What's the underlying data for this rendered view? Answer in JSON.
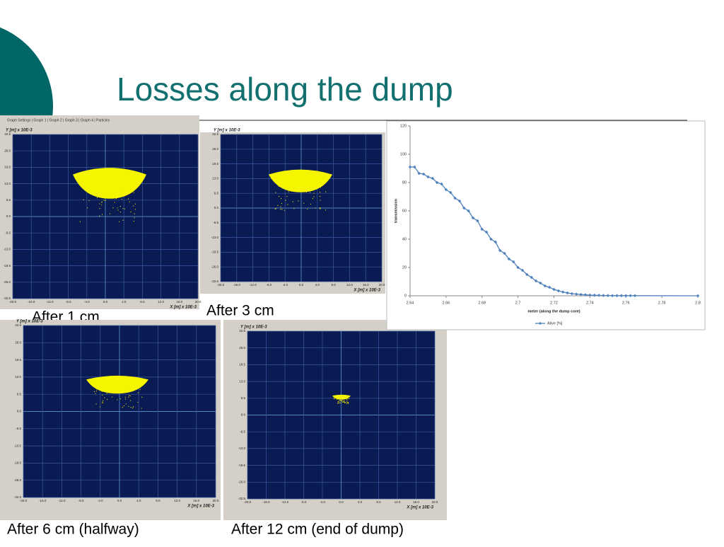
{
  "title": "Losses along the dump",
  "panel_toolbar": "Graph Settings | Graph 1 | Graph 2 | Graph 3 | Graph 4 | Particles",
  "captions": [
    "After 1 cm",
    "After 3 cm",
    "After 6 cm (halfway)",
    "After 12 cm (end of dump)"
  ],
  "panel_axes": {
    "y_label": "Y [m] x 10E-3",
    "x_label": "X [m] x 10E-3",
    "ylim": [
      -32.5,
      32.5
    ],
    "xlim": [
      -20,
      20
    ],
    "yticks": [
      {
        "value": 32.5,
        "label": "32.5"
      },
      {
        "value": 26,
        "label": "26.0"
      },
      {
        "value": 19.5,
        "label": "19.5"
      },
      {
        "value": 13,
        "label": "13.0"
      },
      {
        "value": 6.5,
        "label": "6.5"
      },
      {
        "value": 0,
        "label": "0.0"
      },
      {
        "value": -6.5,
        "label": "-6.5"
      },
      {
        "value": -13,
        "label": "-13.0"
      },
      {
        "value": -19.5,
        "label": "-19.5"
      },
      {
        "value": -26,
        "label": "-26.0"
      },
      {
        "value": -32.5,
        "label": "-32.5"
      }
    ],
    "xticks": [
      {
        "value": -20,
        "label": "-20.0"
      },
      {
        "value": -16,
        "label": "-16.0"
      },
      {
        "value": -12,
        "label": "-12.0"
      },
      {
        "value": -8,
        "label": "-8.0"
      },
      {
        "value": -4,
        "label": "-4.0"
      },
      {
        "value": 0,
        "label": "0.0"
      },
      {
        "value": 4,
        "label": "4.0"
      },
      {
        "value": 8,
        "label": "8.0"
      },
      {
        "value": 12,
        "label": "12.0"
      },
      {
        "value": 16,
        "label": "16.0"
      },
      {
        "value": 20,
        "label": "20.0"
      }
    ]
  },
  "chart_data": {
    "type": "line",
    "x_label": "meter (along the dump core)",
    "y_label": "transmission",
    "xlim": [
      2.64,
      2.8
    ],
    "ylim": [
      0,
      120
    ],
    "xticks": [
      2.64,
      2.66,
      2.68,
      2.7,
      2.72,
      2.74,
      2.76,
      2.78,
      2.8
    ],
    "yticks": [
      0,
      20,
      40,
      60,
      80,
      100,
      120
    ],
    "legend": "bottom",
    "series": [
      {
        "name": "Alive [%]",
        "color": "#4f81bd",
        "x": [
          2.64,
          2.6425,
          2.645,
          2.6475,
          2.65,
          2.6525,
          2.655,
          2.6575,
          2.66,
          2.6625,
          2.665,
          2.6675,
          2.67,
          2.6725,
          2.675,
          2.6775,
          2.68,
          2.6825,
          2.685,
          2.6875,
          2.69,
          2.6925,
          2.695,
          2.6975,
          2.7,
          2.7025,
          2.705,
          2.7075,
          2.71,
          2.7125,
          2.715,
          2.7175,
          2.72,
          2.7225,
          2.725,
          2.7275,
          2.73,
          2.7325,
          2.735,
          2.7375,
          2.74,
          2.7425,
          2.745,
          2.7475,
          2.75,
          2.7525,
          2.755,
          2.7575,
          2.76,
          2.7625,
          2.765,
          2.8
        ],
        "values": [
          91,
          91,
          86.5,
          86,
          84,
          83,
          80,
          79,
          75,
          73,
          69,
          67,
          62,
          60,
          55,
          53,
          47,
          45,
          40,
          38,
          32,
          30,
          26,
          24,
          20,
          18,
          15,
          13,
          10.5,
          9,
          7,
          6,
          4.5,
          3.5,
          2.7,
          2,
          1.5,
          1.2,
          0.9,
          0.7,
          0.5,
          0.4,
          0.3,
          0.2,
          0.15,
          0.1,
          0.1,
          0.1,
          0.1,
          0.1,
          0.1,
          0
        ]
      }
    ]
  }
}
